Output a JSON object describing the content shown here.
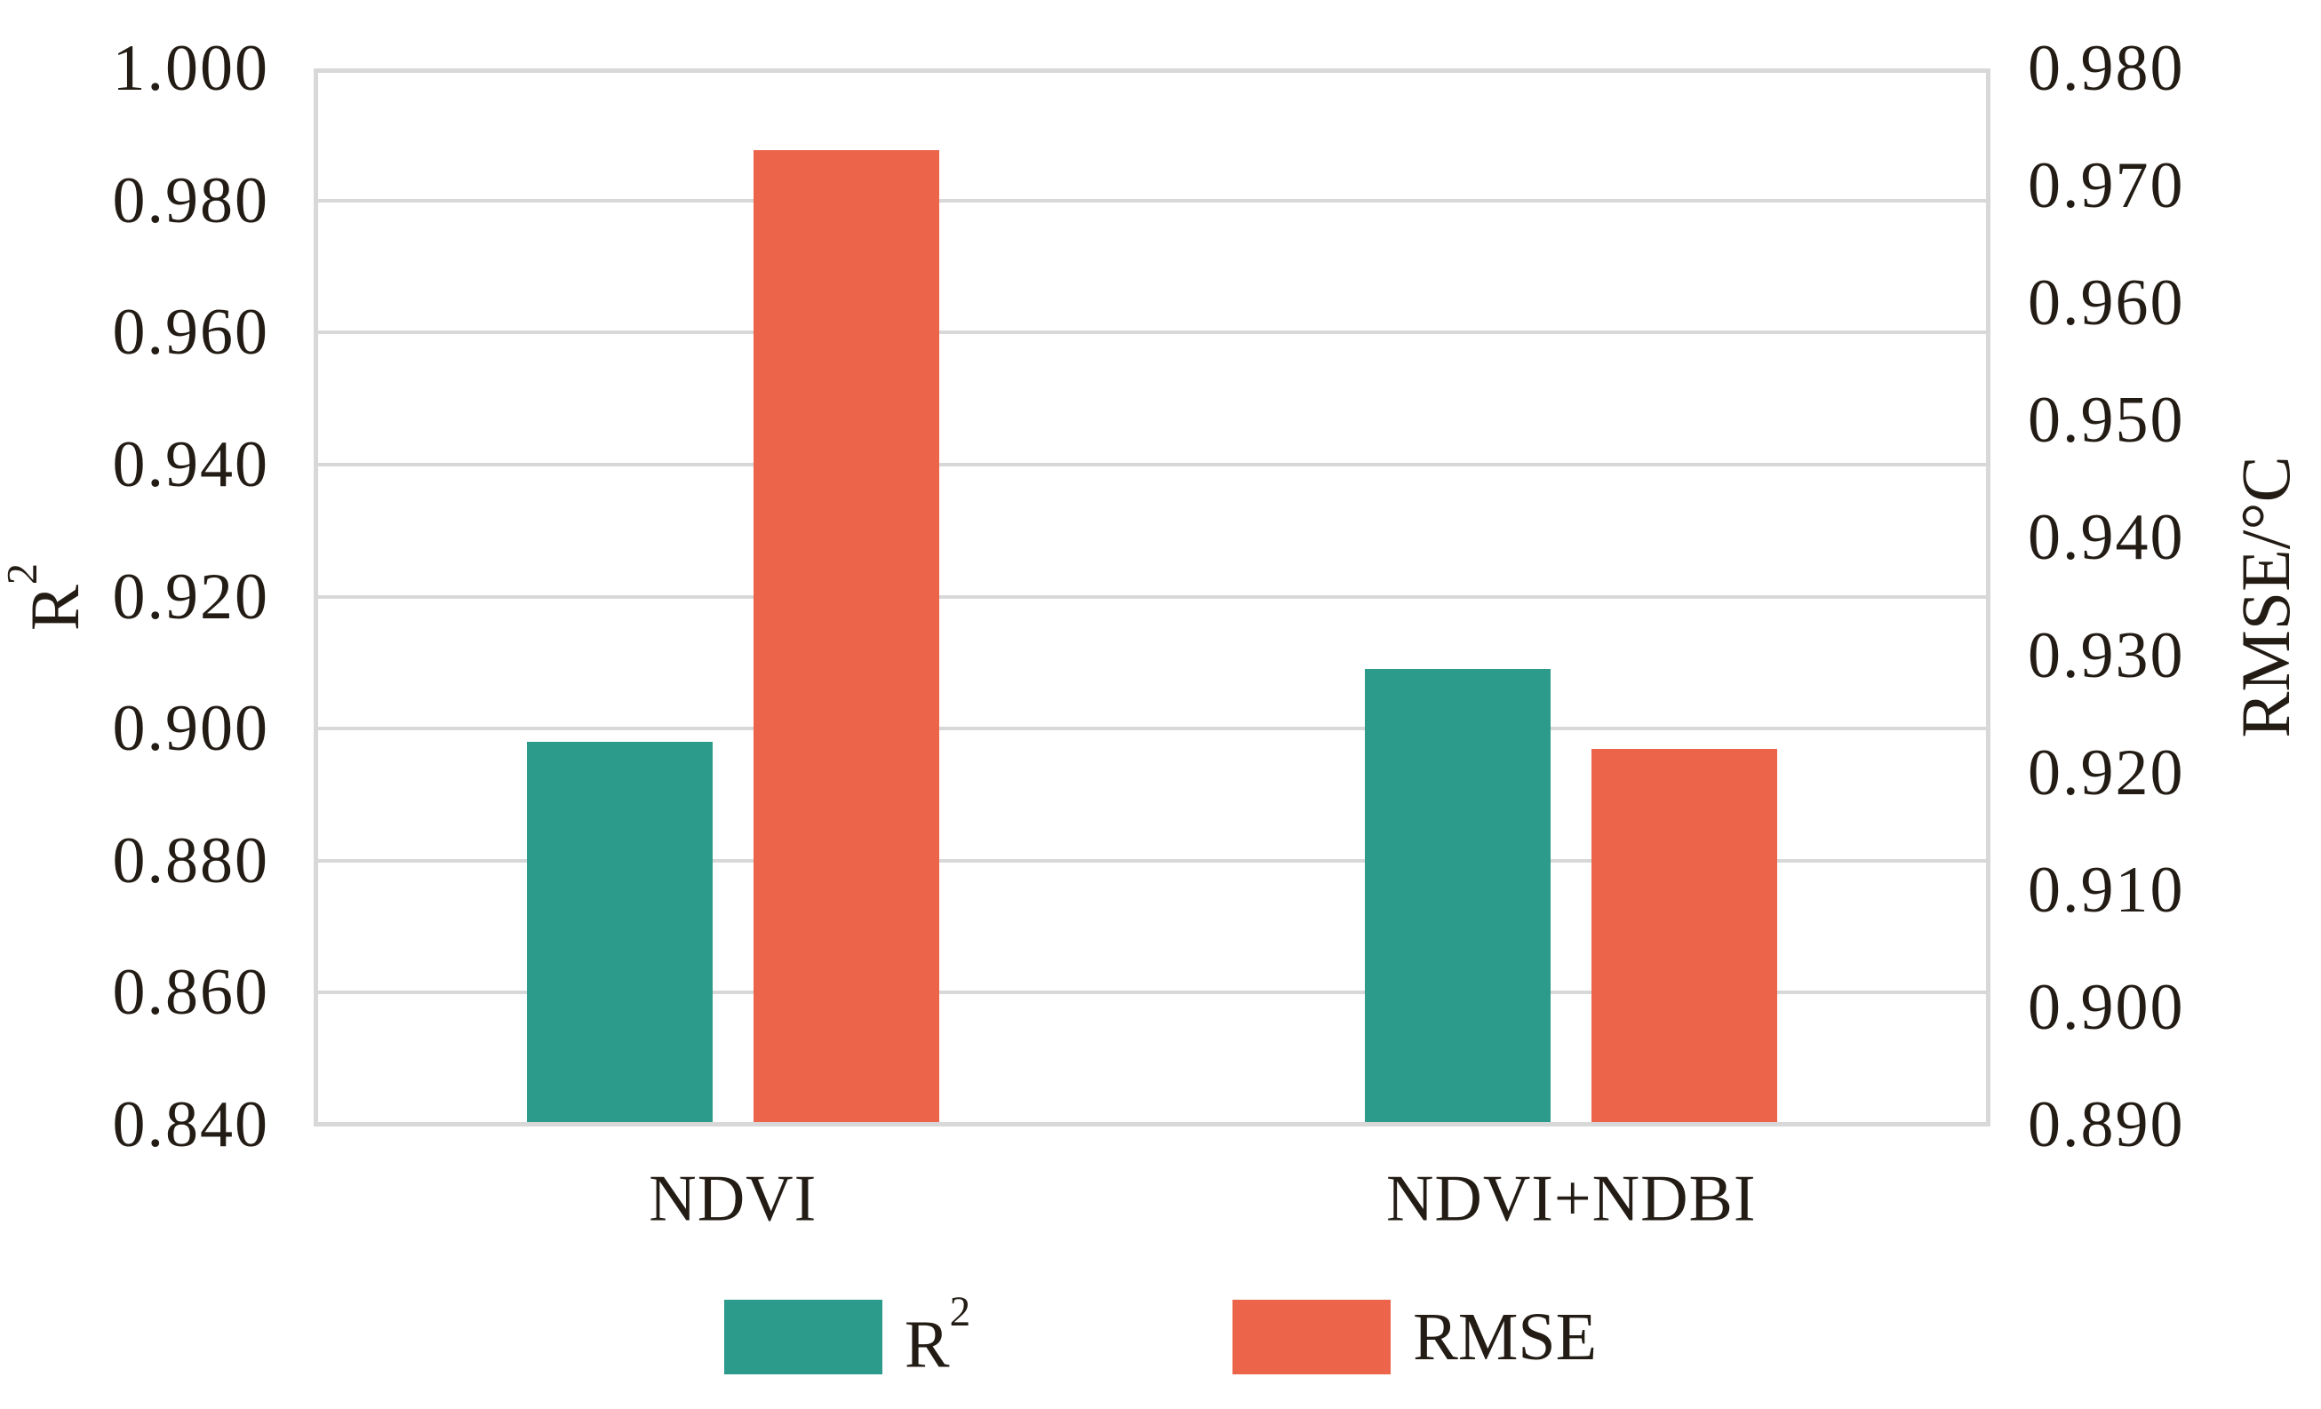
{
  "chart_data": {
    "type": "bar",
    "title": "",
    "categories": [
      "NDVI",
      "NDVI+NDBI"
    ],
    "series": [
      {
        "name": "R²",
        "axis": "left",
        "color": "#2D9B8C",
        "values": [
          0.898,
          0.909
        ]
      },
      {
        "name": "RMSE",
        "axis": "right",
        "color": "#EC654A",
        "values": [
          0.973,
          0.922
        ]
      }
    ],
    "left_axis": {
      "label": "R²",
      "min": 0.84,
      "max": 1.0,
      "step": 0.02,
      "tick_labels": [
        "1.000",
        "0.980",
        "0.960",
        "0.940",
        "0.920",
        "0.900",
        "0.880",
        "0.860",
        "0.840"
      ]
    },
    "right_axis": {
      "label": "RMSE/°C",
      "min": 0.89,
      "max": 0.98,
      "step": 0.01,
      "tick_labels": [
        "0.980",
        "0.970",
        "0.960",
        "0.950",
        "0.940",
        "0.930",
        "0.920",
        "0.910",
        "0.900",
        "0.890"
      ]
    },
    "grid": "horizontal",
    "legend": {
      "position": "bottom",
      "entries": [
        "R²",
        "RMSE"
      ]
    },
    "colors": {
      "grid": "#D8D8D8",
      "text": "#231C15",
      "background": "#FFFFFF",
      "r2_bar": "#2D9B8C",
      "rmse_bar": "#EC654A"
    }
  }
}
